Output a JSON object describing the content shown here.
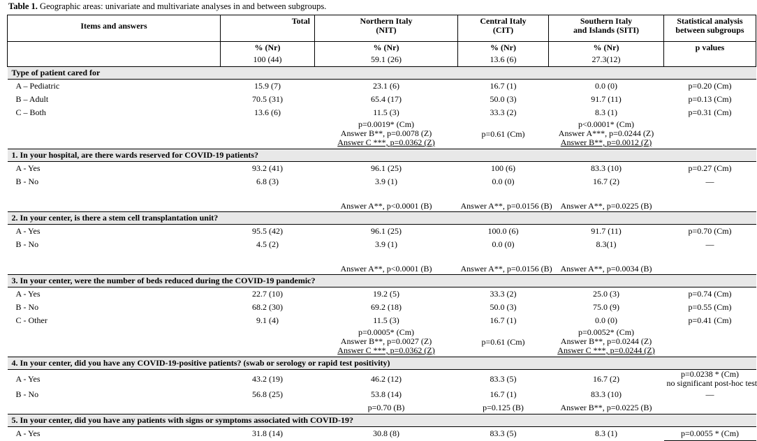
{
  "caption": {
    "label": "Table 1.",
    "text": "Geographic areas: univariate and multivariate analyses in and between subgroups."
  },
  "header": {
    "items": "Items and answers",
    "total": "Total",
    "nit": [
      "Northern Italy",
      "(NIT)"
    ],
    "cit": [
      "Central Italy",
      "(CIT)"
    ],
    "siti": [
      "Southern Italy",
      "and Islands (SITI)"
    ],
    "stat": [
      "Statistical analysis",
      "between subgroups"
    ],
    "units": [
      "% (Nr)",
      "% (Nr)",
      "% (Nr)",
      "% (Nr)",
      "p values"
    ],
    "counts": [
      "100 (44)",
      "59.1 (26)",
      "13.6 (6)",
      "27.3(12)"
    ]
  },
  "sections": [
    {
      "title": "Type of patient cared for",
      "rows": [
        {
          "label": "A – Pediatric",
          "values": [
            "15.9 (7)",
            "23.1 (6)",
            "16.7 (1)",
            "0.0 (0)",
            "p=0.20 (Cm)"
          ]
        },
        {
          "label": "B – Adult",
          "values": [
            "70.5 (31)",
            "65.4 (17)",
            "50.0 (3)",
            "91.7 (11)",
            "p=0.13 (Cm)"
          ]
        },
        {
          "label": "C – Both",
          "values": [
            "13.6 (6)",
            "11.5 (3)",
            "33.3 (2)",
            "8.3 (1)",
            "p=0.31 (Cm)"
          ]
        }
      ],
      "notes": {
        "nit": [
          "p=0.0019* (Cm)",
          "Answer B**, p=0.0078 (Z)",
          "Answer C ***, p=0.0362 (Z)"
        ],
        "cit": [
          "p=0.61 (Cm)"
        ],
        "siti": [
          "p<0.0001* (Cm)",
          "Answer A***, p=0.0244 (Z)",
          "Answer B**, p=0.0012 (Z)"
        ]
      }
    },
    {
      "title": "1. In your hospital, are there wards reserved for COVID-19 patients?",
      "rows": [
        {
          "label": "A - Yes",
          "values": [
            "93.2 (41)",
            "96.1 (25)",
            "100 (6)",
            "83.3 (10)",
            "p=0.27 (Cm)"
          ]
        },
        {
          "label": "B - No",
          "values": [
            "6.8 (3)",
            "3.9 (1)",
            "0.0 (0)",
            "16.7 (2)",
            "—"
          ]
        }
      ],
      "notes": {
        "nit": [
          "Answer A**, p<0.0001 (B)"
        ],
        "cit": [
          "Answer A**, p=0.0156 (B)"
        ],
        "siti": [
          "Answer A**, p=0.0225 (B)"
        ]
      }
    },
    {
      "title": "2. In your center, is there a stem cell transplantation unit?",
      "rows": [
        {
          "label": "A - Yes",
          "values": [
            "95.5 (42)",
            "96.1 (25)",
            "100.0 (6)",
            "91.7 (11)",
            "p=0.70 (Cm)"
          ]
        },
        {
          "label": "B - No",
          "values": [
            "4.5 (2)",
            "3.9 (1)",
            "0.0 (0)",
            "8.3(1)",
            "—"
          ]
        }
      ],
      "notes": {
        "nit": [
          "Answer A**, p<0.0001 (B)"
        ],
        "cit": [
          "Answer A**, p=0.0156 (B)"
        ],
        "siti": [
          "Answer A**, p=0.0034 (B)"
        ]
      }
    },
    {
      "title": "3. In your center, were the number of beds reduced during the COVID-19 pandemic?",
      "rows": [
        {
          "label": "A - Yes",
          "values": [
            "22.7 (10)",
            "19.2 (5)",
            "33.3 (2)",
            "25.0 (3)",
            "p=0.74 (Cm)"
          ]
        },
        {
          "label": "B - No",
          "values": [
            "68.2 (30)",
            "69.2 (18)",
            "50.0 (3)",
            "75.0 (9)",
            "p=0.55 (Cm)"
          ]
        },
        {
          "label": "C - Other",
          "values": [
            "9.1 (4)",
            "11.5 (3)",
            "16.7 (1)",
            "0.0 (0)",
            "p=0.41 (Cm)"
          ]
        }
      ],
      "notes": {
        "nit": [
          "p=0.0005* (Cm)",
          "Answer B**, p=0.0027 (Z)",
          "Answer C ***, p=0.0362 (Z)"
        ],
        "cit": [
          "p=0.61 (Cm)"
        ],
        "siti": [
          "p=0.0052* (Cm)",
          "Answer B**, p=0.0244 (Z)",
          "Answer C ***, p=0.0244 (Z)"
        ]
      }
    },
    {
      "title": "4. In your center, did you have any COVID-19-positive patients? (swab or serology or rapid test positivity)",
      "rows": [
        {
          "label": "A - Yes",
          "values": [
            "43.2 (19)",
            "46.2 (12)",
            "83.3 (5)",
            "16.7 (2)"
          ],
          "stat": [
            "p=0.0238 * (Cm)",
            "no significant post-hoc test"
          ]
        },
        {
          "label": "B - No",
          "values": [
            "56.8 (25)",
            "53.8 (14)",
            "16.7 (1)",
            "83.3 (10)",
            "—"
          ]
        }
      ],
      "notes": {
        "nit": [
          "p=0.70 (B)"
        ],
        "cit": [
          "p=0.125 (B)"
        ],
        "siti": [
          "Answer B**, p=0.0225 (B)"
        ]
      }
    },
    {
      "title": "5. In your center, did you have any patients with signs or symptoms associated with COVID-19?",
      "rows": [
        {
          "label": "A - Yes",
          "values": [
            "31.8 (14)",
            "30.8 (8)",
            "83.3 (5)",
            "8.3 (1)",
            "p=0.0055 * (Cm)"
          ]
        }
      ]
    }
  ]
}
